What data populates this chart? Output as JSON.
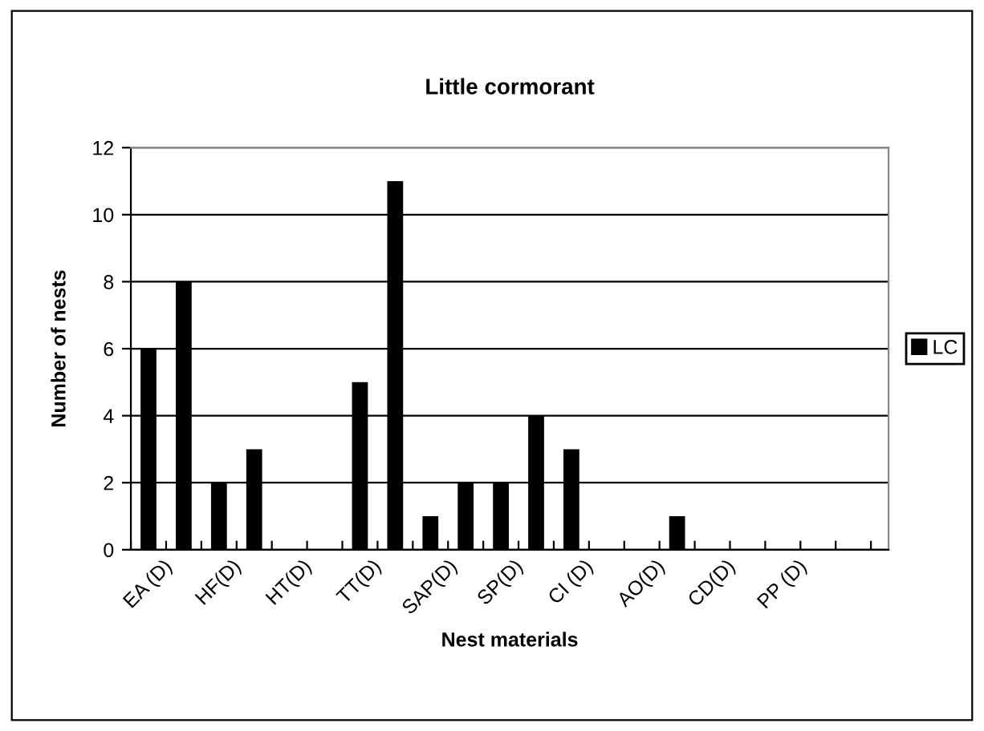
{
  "chart_data": {
    "type": "bar",
    "title": "Little cormorant",
    "xlabel": "Nest materials",
    "ylabel": "Number of nests",
    "categories": [
      "EA (D)",
      null,
      "HF(D)",
      null,
      "HT(D)",
      null,
      "TT(D)",
      null,
      "SAP(D)",
      null,
      "SP(D)",
      null,
      "CI (D)",
      null,
      "AO(D)",
      null,
      "CD(D)",
      null,
      "PP (D)",
      null,
      null
    ],
    "series": [
      {
        "name": "LC",
        "color": "#000000",
        "values": [
          6,
          8,
          2,
          3,
          0,
          0,
          5,
          11,
          1,
          2,
          2,
          4,
          3,
          0,
          0,
          1,
          0,
          0,
          0,
          0,
          0
        ]
      }
    ],
    "ylim": [
      0,
      12
    ],
    "yticks": [
      0,
      2,
      4,
      6,
      8,
      10,
      12
    ],
    "grid": "y",
    "legend": "right"
  }
}
